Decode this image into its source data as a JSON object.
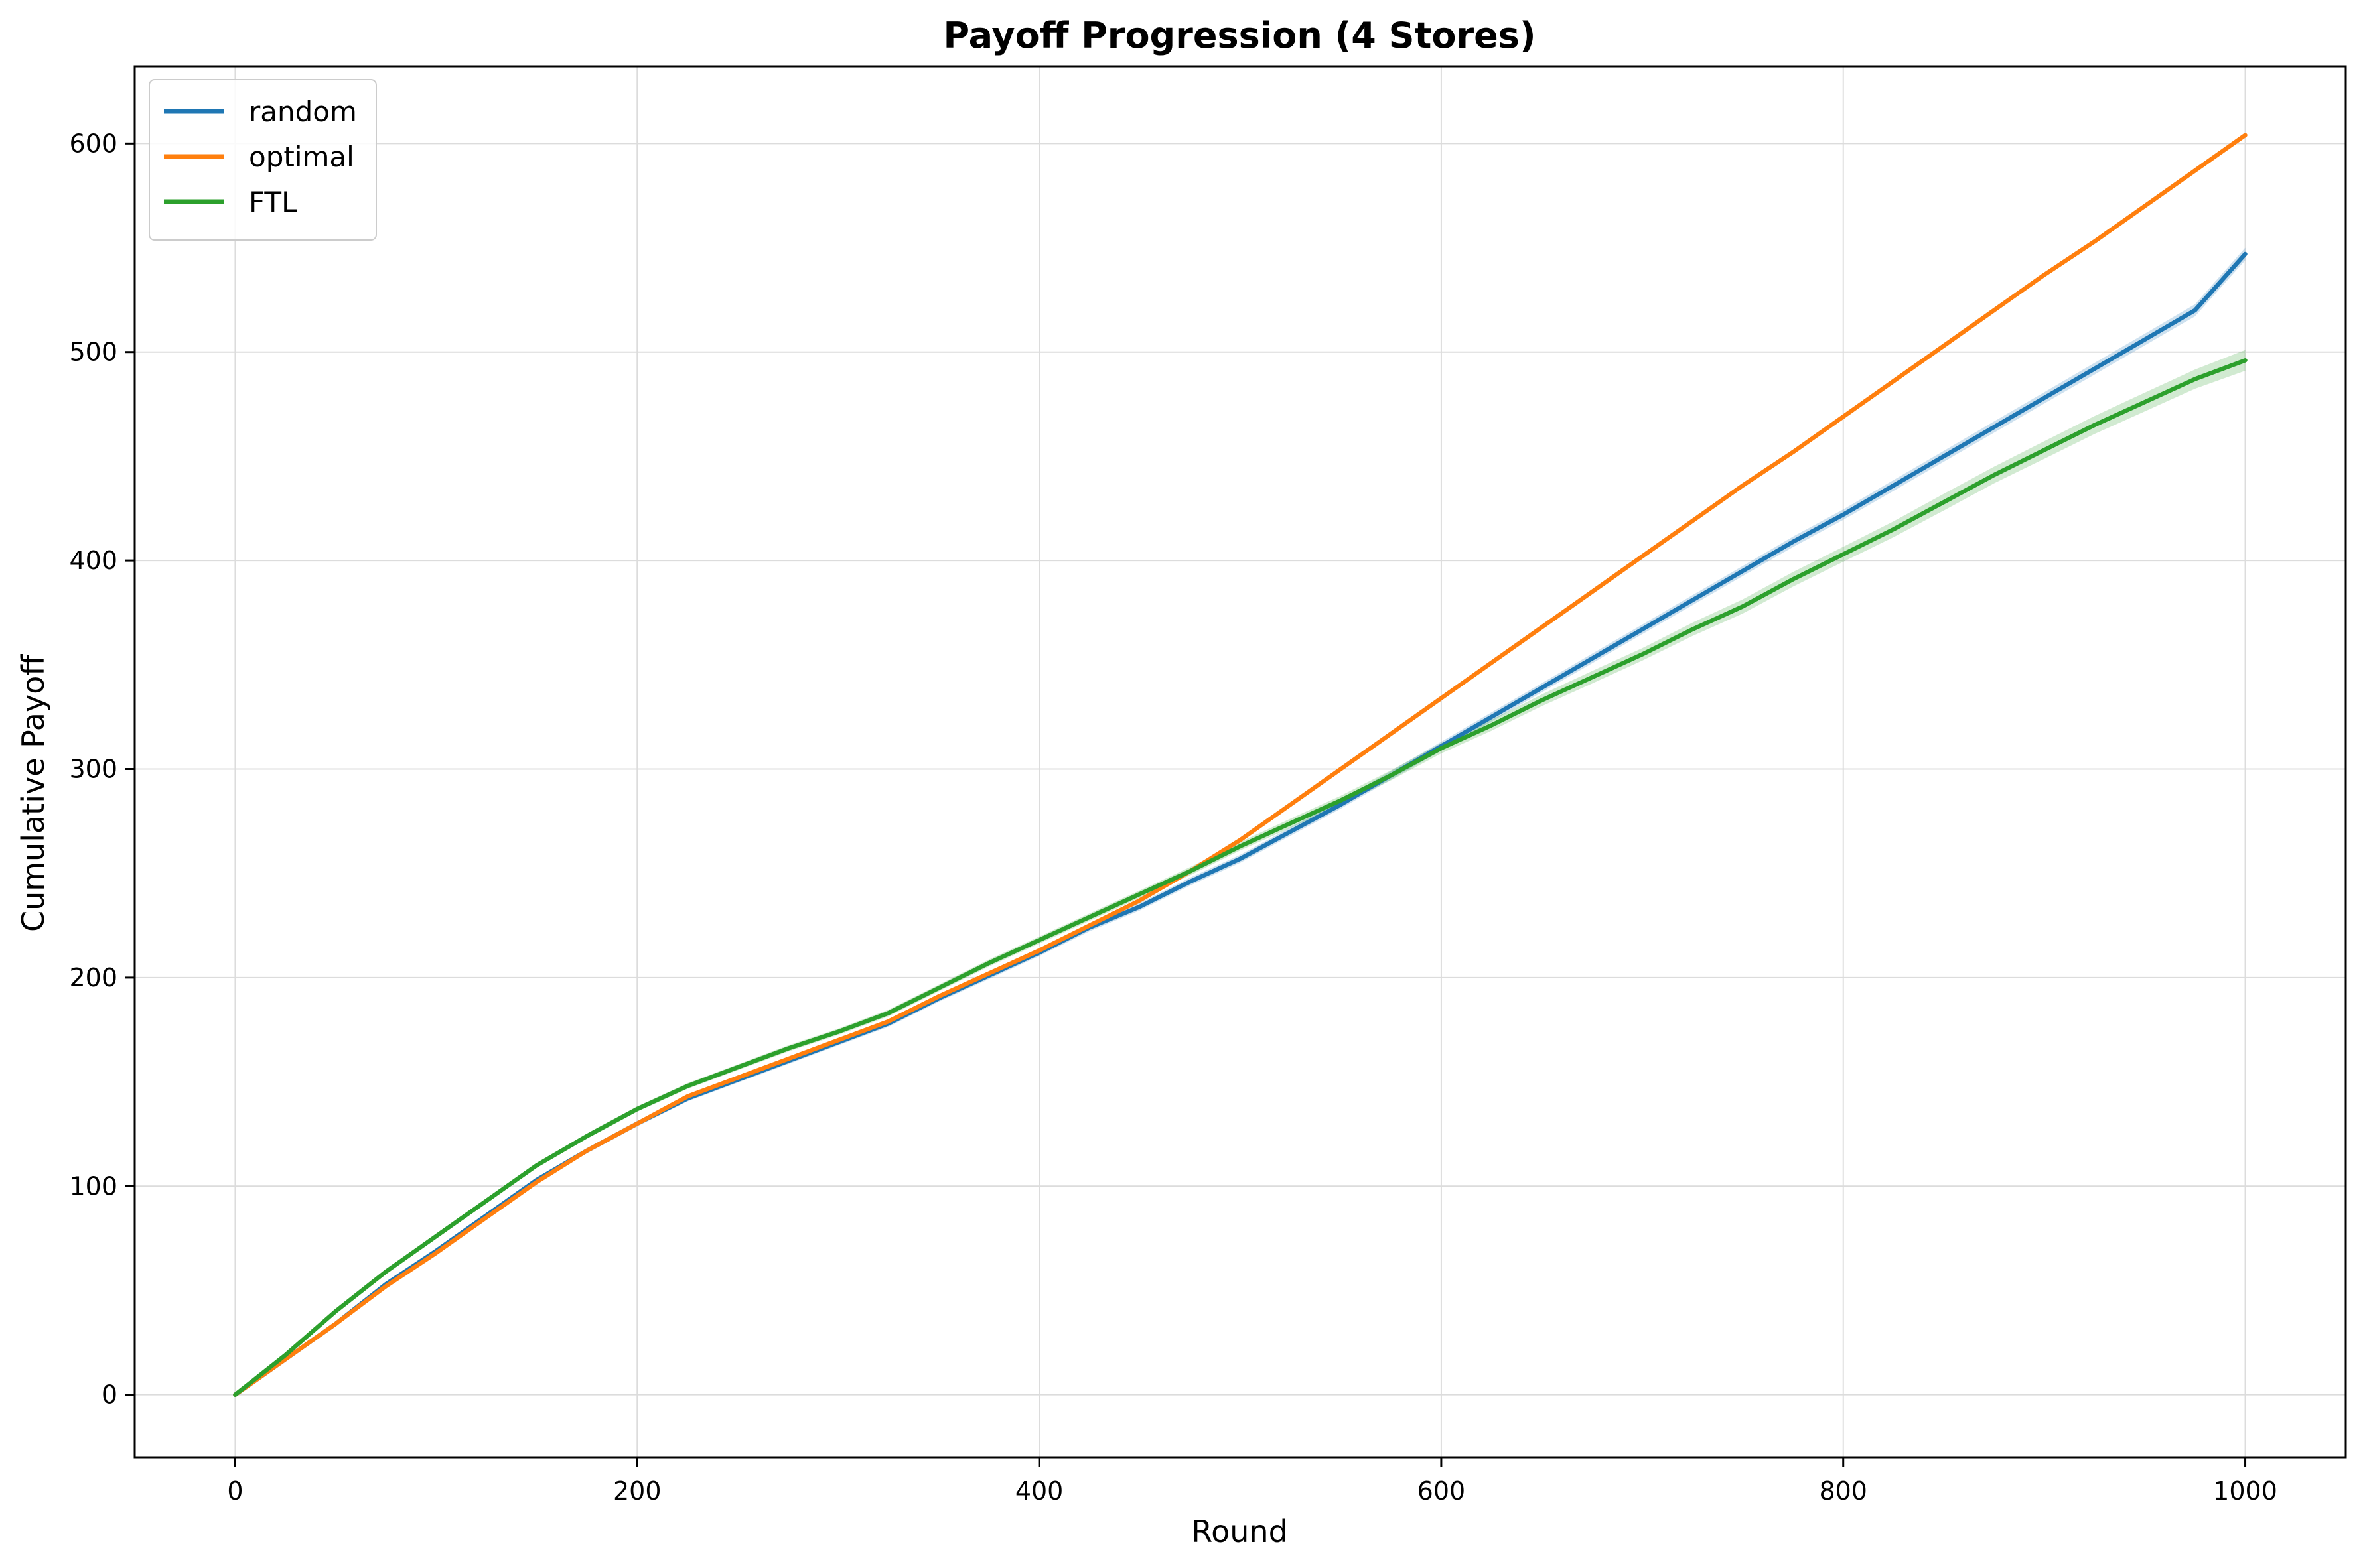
{
  "chart_data": {
    "type": "line",
    "title": "Payoff Progression (4 Stores)",
    "xlabel": "Round",
    "ylabel": "Cumulative Payoff",
    "xlim": [
      -50,
      1050
    ],
    "ylim": [
      -30,
      637
    ],
    "xticks": [
      0,
      200,
      400,
      600,
      800,
      1000
    ],
    "yticks": [
      0,
      100,
      200,
      300,
      400,
      500,
      600
    ],
    "grid": true,
    "legend_position": "upper-left",
    "x": [
      0,
      25,
      50,
      75,
      100,
      125,
      150,
      175,
      200,
      225,
      250,
      275,
      300,
      325,
      350,
      375,
      400,
      425,
      450,
      475,
      500,
      525,
      550,
      575,
      600,
      625,
      650,
      675,
      700,
      725,
      750,
      775,
      800,
      825,
      850,
      875,
      900,
      925,
      950,
      975,
      1000
    ],
    "series": [
      {
        "name": "random",
        "color": "#1f77b4",
        "band": true,
        "values": [
          0,
          17,
          34,
          53,
          69,
          86,
          103,
          117,
          130,
          142,
          151,
          160,
          169,
          178,
          190,
          201,
          212,
          224,
          234,
          246,
          257,
          270,
          283,
          297,
          311,
          325,
          339,
          353,
          367,
          381,
          395,
          409,
          422,
          436,
          450,
          464,
          478,
          492,
          506,
          520,
          547
        ],
        "band_halfwidth": [
          0,
          0.5,
          0.8,
          1,
          1,
          1.2,
          1.2,
          1.3,
          1.3,
          1.4,
          1.4,
          1.5,
          1.5,
          1.6,
          1.6,
          1.7,
          1.7,
          1.8,
          1.8,
          1.9,
          1.9,
          2,
          2,
          2.1,
          2.1,
          2.2,
          2.2,
          2.3,
          2.3,
          2.4,
          2.4,
          2.5,
          2.5,
          2.6,
          2.6,
          2.7,
          2.7,
          2.8,
          2.8,
          2.9,
          3
        ]
      },
      {
        "name": "optimal",
        "color": "#ff7f0e",
        "band": false,
        "values": [
          0,
          17,
          34,
          52,
          68,
          85,
          102,
          117,
          130,
          143,
          152,
          161,
          170,
          179,
          191,
          202,
          213,
          225,
          237,
          251,
          266,
          283,
          300,
          317,
          334,
          351,
          368,
          385,
          402,
          419,
          436,
          452,
          469,
          486,
          503,
          520,
          537,
          553,
          570,
          587,
          604
        ]
      },
      {
        "name": "FTL",
        "color": "#2ca02c",
        "band": true,
        "values": [
          0,
          19,
          40,
          59,
          76,
          93,
          110,
          124,
          137,
          148,
          157,
          166,
          174,
          183,
          195,
          207,
          218,
          229,
          240,
          251,
          263,
          274,
          285,
          297,
          310,
          321,
          333,
          344,
          355,
          367,
          378,
          391,
          403,
          415,
          428,
          441,
          453,
          465,
          476,
          487,
          496
        ]
      }
    ],
    "ftl_band_halfwidth": [
      0,
      0.5,
      0.8,
      1,
      1,
      1.2,
      1.2,
      1.3,
      1.3,
      1.4,
      1.4,
      1.5,
      1.5,
      1.6,
      1.6,
      1.7,
      1.7,
      1.8,
      1.8,
      2,
      2,
      2.2,
      2.2,
      2.4,
      2.5,
      2.6,
      2.8,
      3,
      3,
      3.2,
      3.4,
      3.5,
      3.6,
      3.8,
      4,
      4,
      4.2,
      4.3,
      4.5,
      4.6,
      5
    ]
  }
}
